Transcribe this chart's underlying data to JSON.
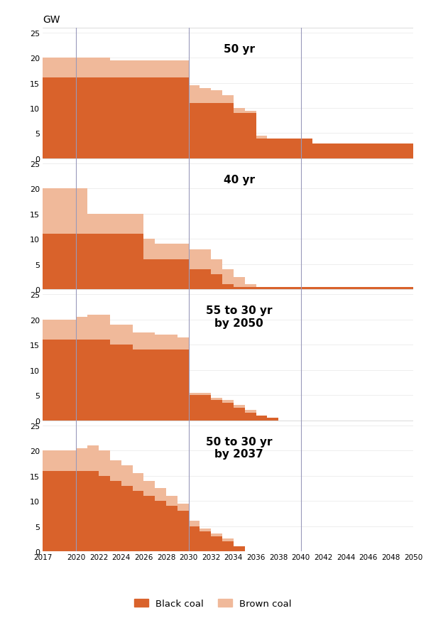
{
  "years": [
    2017,
    2018,
    2019,
    2020,
    2021,
    2022,
    2023,
    2024,
    2025,
    2026,
    2027,
    2028,
    2029,
    2030,
    2031,
    2032,
    2033,
    2034,
    2035,
    2036,
    2037,
    2038,
    2039,
    2040,
    2041,
    2042,
    2043,
    2044,
    2045,
    2046,
    2047,
    2048,
    2049,
    2050
  ],
  "charts": [
    {
      "label": "50 yr",
      "black_coal": [
        16,
        16,
        16,
        16,
        16,
        16,
        16,
        16,
        16,
        16,
        16,
        16,
        16,
        11,
        11,
        11,
        11,
        9,
        9,
        4,
        4,
        4,
        4,
        4,
        3,
        3,
        3,
        3,
        3,
        3,
        3,
        3,
        3,
        0.5
      ],
      "brown_coal": [
        4,
        4,
        4,
        4,
        4,
        4,
        3.5,
        3.5,
        3.5,
        3.5,
        3.5,
        3.5,
        3.5,
        3.5,
        3,
        2.5,
        1.5,
        1,
        0.5,
        0.5,
        0,
        0,
        0,
        0,
        0,
        0,
        0,
        0,
        0,
        0,
        0,
        0,
        0,
        0
      ]
    },
    {
      "label": "40 yr",
      "black_coal": [
        11,
        11,
        11,
        11,
        11,
        11,
        11,
        11,
        11,
        6,
        6,
        6,
        6,
        4,
        4,
        3,
        1,
        0.5,
        0.5,
        0.5,
        0.5,
        0.5,
        0.5,
        0.5,
        0.5,
        0.5,
        0.5,
        0.5,
        0.5,
        0.5,
        0.5,
        0.5,
        0.5,
        0.5
      ],
      "brown_coal": [
        9,
        9,
        9,
        9,
        4,
        4,
        4,
        4,
        4,
        4,
        3,
        3,
        3,
        4,
        4,
        3,
        3,
        2,
        0.5,
        0,
        0,
        0,
        0,
        0,
        0,
        0,
        0,
        0,
        0,
        0,
        0,
        0,
        0,
        0
      ]
    },
    {
      "label": "55 to 30 yr\nby 2050",
      "black_coal": [
        16,
        16,
        16,
        16,
        16,
        16,
        15,
        15,
        14,
        14,
        14,
        14,
        14,
        5,
        5,
        4,
        3.5,
        2.5,
        1.5,
        1,
        0.5,
        0,
        0,
        0,
        0,
        0,
        0,
        0,
        0,
        0,
        0,
        0,
        0,
        0
      ],
      "brown_coal": [
        4,
        4,
        4,
        4.5,
        5,
        5,
        4,
        4,
        3.5,
        3.5,
        3,
        3,
        2.5,
        0.5,
        0.5,
        0.5,
        0.5,
        0.5,
        0.5,
        0,
        0,
        0,
        0,
        0,
        0,
        0,
        0,
        0,
        0,
        0,
        0,
        0,
        0,
        0
      ]
    },
    {
      "label": "50 to 30 yr\nby 2037",
      "black_coal": [
        16,
        16,
        16,
        16,
        16,
        15,
        14,
        13,
        12,
        11,
        10,
        9,
        8,
        5,
        4,
        3,
        2,
        1,
        0,
        0,
        0,
        0,
        0,
        0,
        0,
        0,
        0,
        0,
        0,
        0,
        0,
        0,
        0,
        0
      ],
      "brown_coal": [
        4,
        4,
        4,
        4.5,
        5,
        5,
        4,
        4,
        3.5,
        3,
        2.5,
        2,
        1.5,
        1,
        0.5,
        0.5,
        0.5,
        0,
        0,
        0,
        0,
        0,
        0,
        0,
        0,
        0,
        0,
        0,
        0,
        0,
        0,
        0,
        0,
        0
      ]
    }
  ],
  "black_coal_color": "#d9622b",
  "brown_coal_color": "#f0b99a",
  "vline_color": "#9999bb",
  "background_color": "#ffffff",
  "ylim": [
    0,
    26
  ],
  "yticks": [
    0,
    5,
    10,
    15,
    20,
    25
  ],
  "vlines": [
    2020,
    2030,
    2040
  ],
  "xlabel_years": [
    2017,
    2020,
    2022,
    2024,
    2026,
    2028,
    2030,
    2032,
    2034,
    2036,
    2038,
    2040,
    2042,
    2044,
    2046,
    2048,
    2050
  ],
  "gw_label": "GW"
}
